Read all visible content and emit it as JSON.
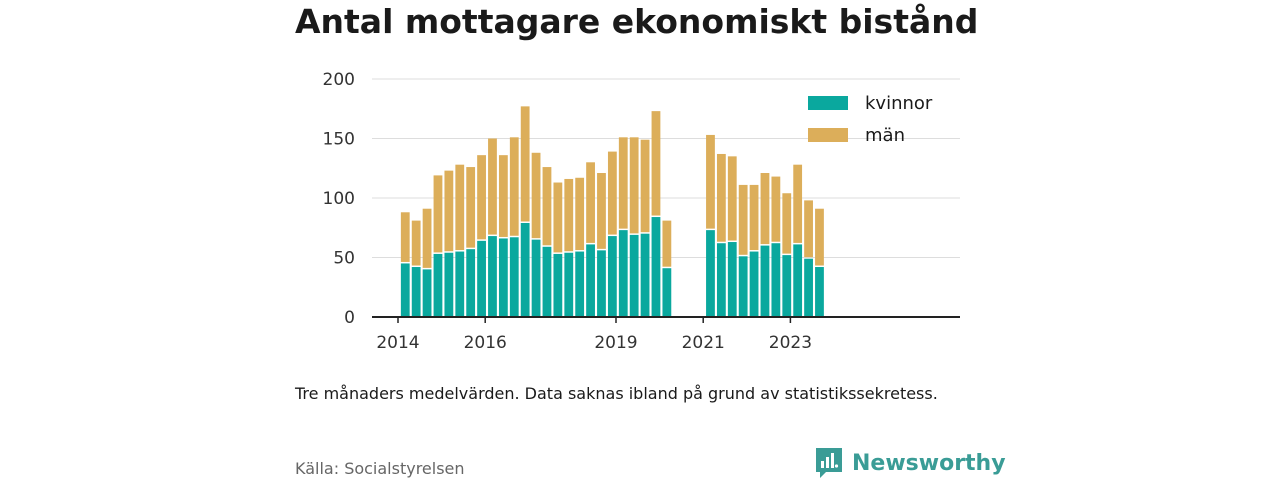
{
  "title": "Antal mottagare ekonomiskt bistånd",
  "note": "Tre månaders medelvärden. Data saknas ibland på grund av statistikssekretess.",
  "source": "Källa: Socialstyrelsen",
  "brand": {
    "name": "Newsworthy",
    "icon": "newsworthy-logo-icon",
    "color": "#3a9c96"
  },
  "colors": {
    "kvinnor": "#0aa89e",
    "man": "#dcae5a",
    "grid": "#dddddd",
    "axis": "#222222"
  },
  "chart_data": {
    "type": "bar",
    "stacked": true,
    "title": "Antal mottagare ekonomiskt bistånd",
    "ylim": [
      0,
      200
    ],
    "yticks": [
      0,
      50,
      100,
      150,
      200
    ],
    "x_tick_labels": [
      {
        "label": "2014",
        "at": "2014-01"
      },
      {
        "label": "2016",
        "at": "2016-01"
      },
      {
        "label": "2019",
        "at": "2019-01"
      },
      {
        "label": "2021",
        "at": "2021-01"
      },
      {
        "label": "2023",
        "at": "2023-01"
      }
    ],
    "grid": true,
    "legend": {
      "placement": "top-right",
      "entries": [
        "kvinnor",
        "män"
      ]
    },
    "categories": [
      "2014-03",
      "2014-06",
      "2014-09",
      "2014-12",
      "2015-03",
      "2015-06",
      "2015-09",
      "2015-12",
      "2016-03",
      "2016-06",
      "2016-09",
      "2016-12",
      "2017-03",
      "2017-06",
      "2017-09",
      "2017-12",
      "2018-03",
      "2018-06",
      "2018-09",
      "2018-12",
      "2019-03",
      "2019-06",
      "2019-09",
      "2019-12",
      "2020-03",
      "2020-06",
      "2020-09",
      "2020-12",
      "2021-03",
      "2021-06",
      "2021-09",
      "2021-12",
      "2022-03",
      "2022-06",
      "2022-09",
      "2022-12",
      "2023-03",
      "2023-06",
      "2023-09",
      "2023-12"
    ],
    "series": [
      {
        "name": "kvinnor",
        "values": [
          45,
          42,
          40,
          53,
          54,
          55,
          57,
          64,
          68,
          66,
          67,
          79,
          65,
          59,
          53,
          54,
          55,
          61,
          56,
          68,
          73,
          69,
          70,
          84,
          41,
          null,
          null,
          null,
          73,
          62,
          63,
          51,
          55,
          60,
          62,
          52,
          61,
          49,
          42,
          null
        ]
      },
      {
        "name": "män",
        "values": [
          43,
          39,
          51,
          66,
          69,
          73,
          69,
          72,
          82,
          70,
          84,
          98,
          73,
          67,
          60,
          62,
          62,
          69,
          65,
          71,
          78,
          82,
          79,
          89,
          40,
          null,
          null,
          null,
          80,
          75,
          72,
          60,
          56,
          61,
          56,
          52,
          67,
          49,
          49,
          null
        ]
      }
    ]
  }
}
